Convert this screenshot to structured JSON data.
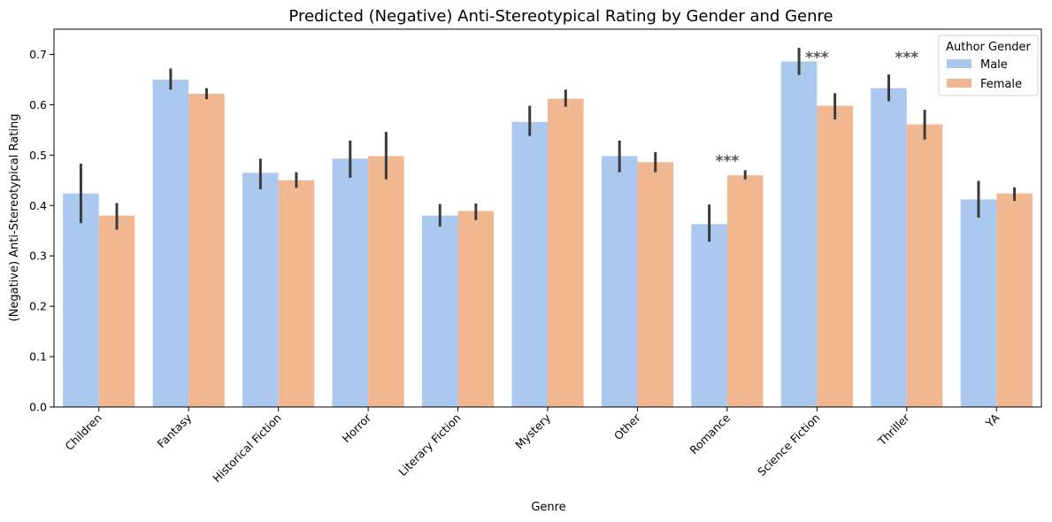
{
  "chart_data": {
    "type": "bar",
    "title": "Predicted (Negative) Anti-Stereotypical Rating by Gender and Genre",
    "xlabel": "Genre",
    "ylabel": "(Negative) Anti-Stereotypical Rating",
    "ylim": [
      0,
      0.75
    ],
    "yticks": [
      "0.0",
      "0.1",
      "0.2",
      "0.3",
      "0.4",
      "0.5",
      "0.6",
      "0.7"
    ],
    "categories": [
      "Children",
      "Fantasy",
      "Historical Fiction",
      "Horror",
      "Literary Fiction",
      "Mystery",
      "Other",
      "Romance",
      "Science Fiction",
      "Thriller",
      "YA"
    ],
    "series": [
      {
        "name": "Male",
        "color": "#abc9ee",
        "values": [
          0.424,
          0.65,
          0.465,
          0.493,
          0.38,
          0.566,
          0.498,
          0.363,
          0.686,
          0.633,
          0.412
        ],
        "err_low": [
          0.365,
          0.63,
          0.432,
          0.455,
          0.358,
          0.538,
          0.466,
          0.328,
          0.659,
          0.607,
          0.376
        ],
        "err_high": [
          0.483,
          0.672,
          0.493,
          0.529,
          0.403,
          0.598,
          0.529,
          0.402,
          0.713,
          0.66,
          0.449
        ]
      },
      {
        "name": "Female",
        "color": "#f0b790",
        "values": [
          0.38,
          0.622,
          0.45,
          0.498,
          0.389,
          0.612,
          0.486,
          0.46,
          0.598,
          0.561,
          0.424
        ],
        "err_low": [
          0.352,
          0.611,
          0.435,
          0.452,
          0.371,
          0.596,
          0.466,
          0.452,
          0.571,
          0.531,
          0.409
        ],
        "err_high": [
          0.405,
          0.633,
          0.466,
          0.546,
          0.404,
          0.63,
          0.506,
          0.47,
          0.623,
          0.59,
          0.436
        ]
      }
    ],
    "significance": [
      {
        "category": "Romance",
        "label": "***",
        "y": 0.5
      },
      {
        "category": "Science Fiction",
        "label": "***",
        "y": 0.705
      },
      {
        "category": "Thriller",
        "label": "***",
        "y": 0.705
      }
    ],
    "legend": {
      "title": "Author Gender",
      "placement": "top-right",
      "entries": [
        "Male",
        "Female"
      ]
    },
    "grid": false,
    "errorbar_color": "#3b3b3b"
  }
}
